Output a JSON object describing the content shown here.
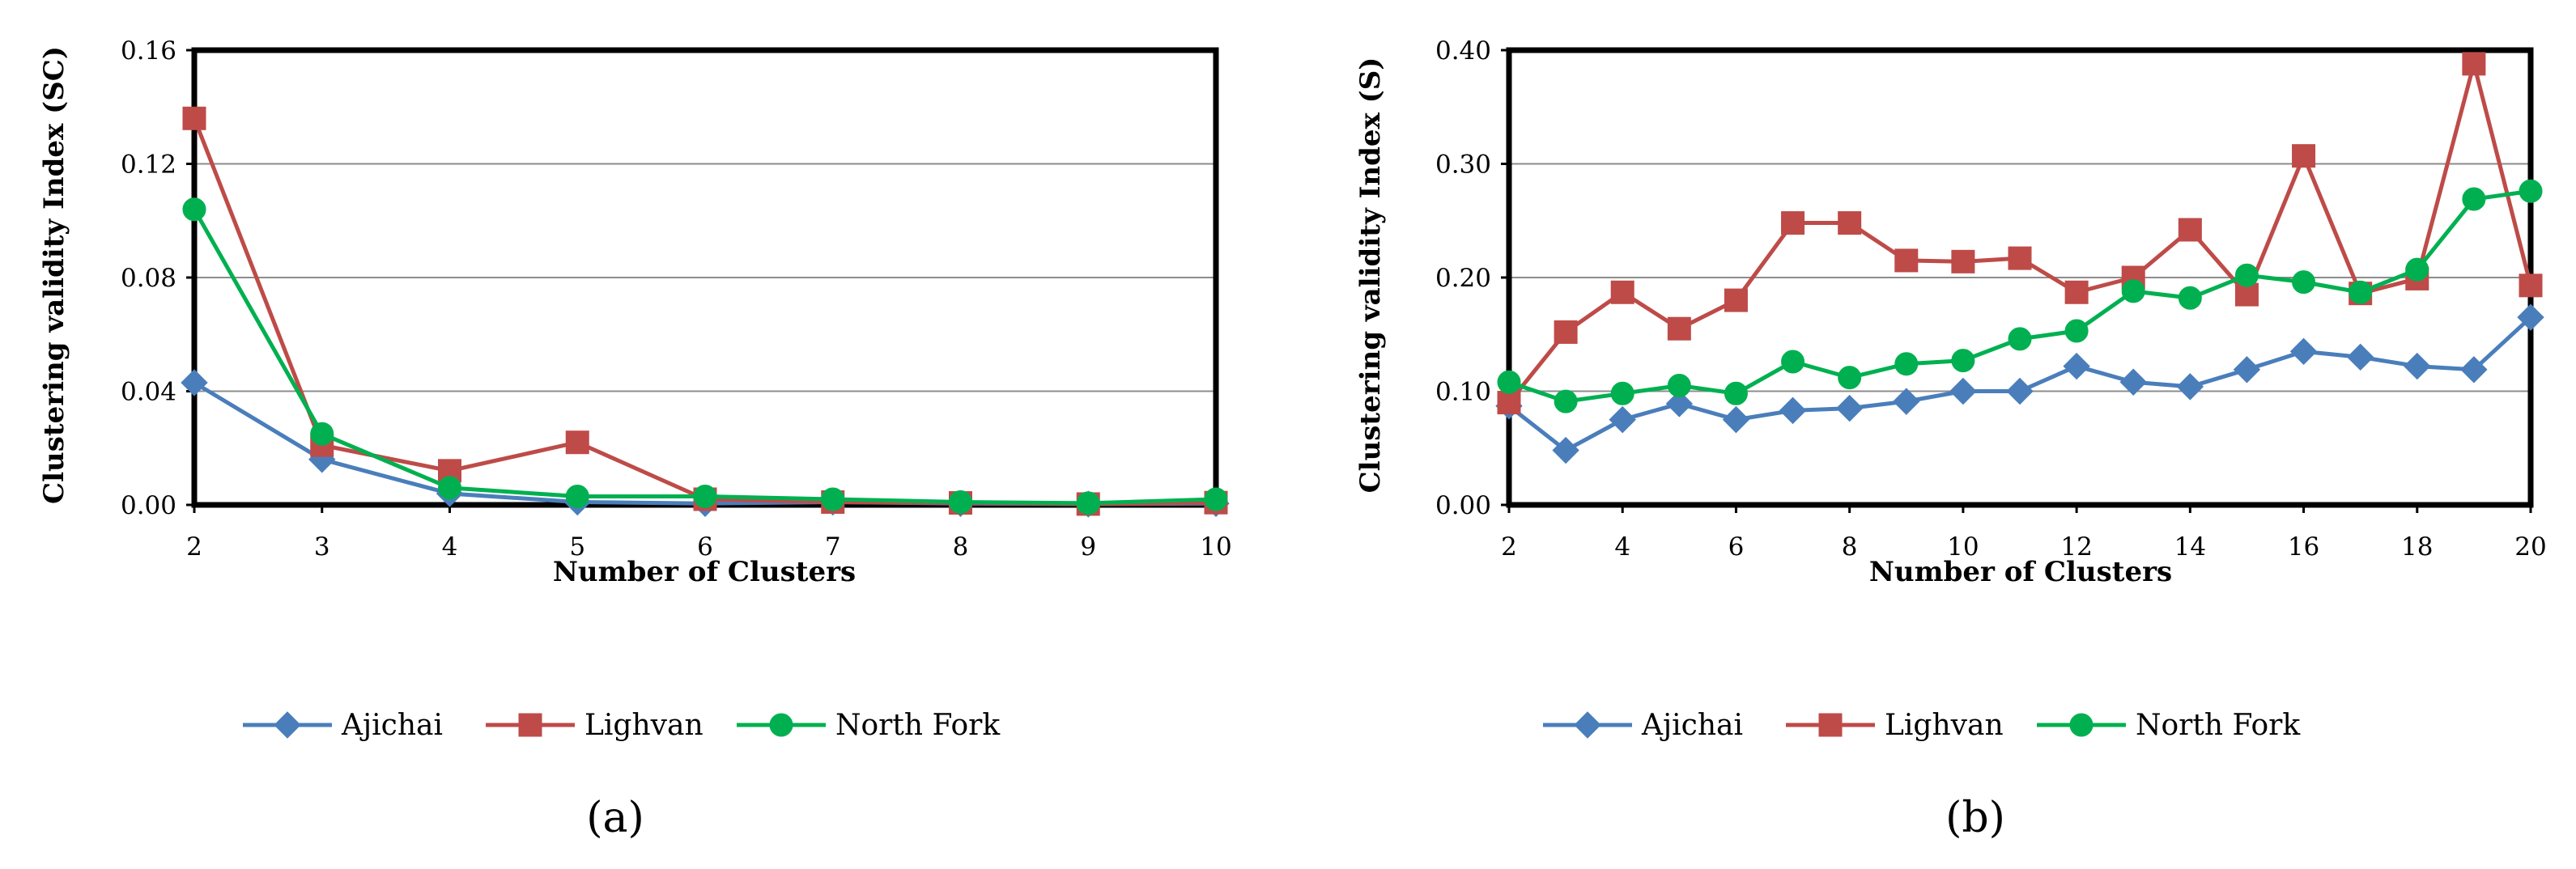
{
  "chart_data": [
    {
      "type": "line",
      "panel_label": "(a)",
      "xlabel": "Number of Clusters",
      "ylabel": "Clustering validity Index (SC)",
      "x": [
        2,
        3,
        4,
        5,
        6,
        7,
        8,
        9,
        10
      ],
      "xticks": [
        2,
        3,
        4,
        5,
        6,
        7,
        8,
        9,
        10
      ],
      "xlim": [
        2,
        10
      ],
      "ylim": [
        0,
        0.16
      ],
      "yticks": [
        0.0,
        0.04,
        0.08,
        0.12,
        0.16
      ],
      "ytick_labels": [
        "0.00",
        "0.04",
        "0.08",
        "0.12",
        "0.16"
      ],
      "grid": "horizontal",
      "legend": "bottom",
      "series": [
        {
          "name": "Ajichai",
          "color": "#4a7ebb",
          "marker": "diamond",
          "values": [
            0.043,
            0.016,
            0.004,
            0.001,
            0.0005,
            0.001,
            0.0005,
            0.0003,
            0.0005
          ]
        },
        {
          "name": "Lighvan",
          "color": "#be4b48",
          "marker": "square",
          "values": [
            0.136,
            0.021,
            0.012,
            0.022,
            0.002,
            0.001,
            0.0007,
            0.0003,
            0.0008
          ]
        },
        {
          "name": "North Fork",
          "color": "#00b050",
          "marker": "circle",
          "values": [
            0.104,
            0.025,
            0.006,
            0.003,
            0.003,
            0.002,
            0.001,
            0.0006,
            0.002
          ]
        }
      ]
    },
    {
      "type": "line",
      "panel_label": "(b)",
      "xlabel": "Number of Clusters",
      "ylabel": "Clustering validity Index (S)",
      "x": [
        2,
        3,
        4,
        5,
        6,
        7,
        8,
        9,
        10,
        11,
        12,
        13,
        14,
        15,
        16,
        17,
        18,
        19,
        20
      ],
      "xticks": [
        2,
        4,
        6,
        8,
        10,
        12,
        14,
        16,
        18,
        20
      ],
      "xlim": [
        2,
        20
      ],
      "ylim": [
        0,
        0.4
      ],
      "yticks": [
        0.0,
        0.1,
        0.2,
        0.3,
        0.4
      ],
      "ytick_labels": [
        "0.00",
        "0.10",
        "0.20",
        "0.30",
        "0.40"
      ],
      "grid": "horizontal",
      "legend": "bottom",
      "series": [
        {
          "name": "Ajichai",
          "color": "#4a7ebb",
          "marker": "diamond",
          "values": [
            0.087,
            0.048,
            0.075,
            0.089,
            0.075,
            0.083,
            0.085,
            0.091,
            0.1,
            0.1,
            0.122,
            0.108,
            0.104,
            0.119,
            0.135,
            0.13,
            0.122,
            0.119,
            0.165
          ]
        },
        {
          "name": "Lighvan",
          "color": "#be4b48",
          "marker": "square",
          "values": [
            0.09,
            0.152,
            0.187,
            0.155,
            0.18,
            0.248,
            0.248,
            0.215,
            0.214,
            0.217,
            0.187,
            0.2,
            0.242,
            0.185,
            0.307,
            0.186,
            0.199,
            0.388,
            0.193
          ]
        },
        {
          "name": "North Fork",
          "color": "#00b050",
          "marker": "circle",
          "values": [
            0.108,
            0.091,
            0.098,
            0.105,
            0.098,
            0.126,
            0.112,
            0.124,
            0.127,
            0.146,
            0.153,
            0.188,
            0.182,
            0.202,
            0.196,
            0.187,
            0.207,
            0.269,
            0.276
          ]
        }
      ]
    }
  ]
}
